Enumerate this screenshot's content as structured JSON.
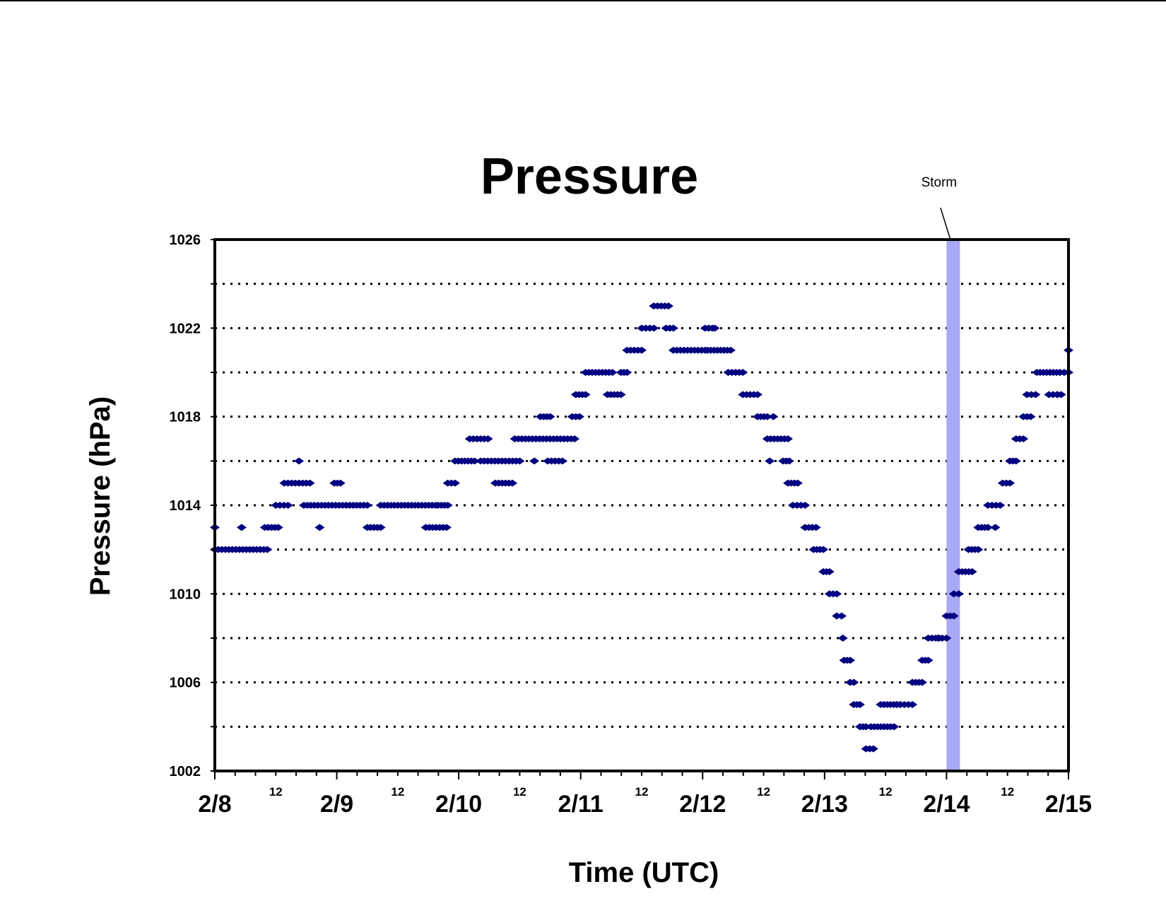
{
  "chart_data": {
    "type": "scatter",
    "title": "Pressure",
    "xlabel": "Time (UTC)",
    "ylabel": "Pressure (hPa)",
    "x_unit": "days",
    "xlim": [
      0,
      7
    ],
    "ylim": [
      1002,
      1026
    ],
    "y_ticks": [
      1002,
      1006,
      1010,
      1014,
      1018,
      1022,
      1026
    ],
    "y_gridlines": [
      1004,
      1006,
      1008,
      1010,
      1012,
      1014,
      1016,
      1018,
      1020,
      1022,
      1024
    ],
    "grid": "dotted horizontal",
    "day_tick_labels": [
      "2/8",
      "2/9",
      "2/10",
      "2/11",
      "2/12",
      "2/13",
      "2/14",
      "2/15"
    ],
    "noon_tick_label": "12",
    "marker_color": "#000080",
    "annotation": {
      "text": "Storm",
      "band_start": 6.0,
      "band_end": 6.11,
      "color": "#a9a9f5"
    },
    "series": [
      {
        "segments": [
          [
            0.0,
            0.43,
            1012
          ],
          [
            0.0,
            0.0,
            1013
          ],
          [
            0.22,
            0.22,
            1013
          ],
          [
            0.41,
            0.52,
            1013
          ],
          [
            0.5,
            0.6,
            1014
          ],
          [
            0.57,
            0.78,
            1015
          ],
          [
            0.69,
            0.69,
            1016
          ],
          [
            0.73,
            1.25,
            1014
          ],
          [
            0.86,
            0.86,
            1013
          ],
          [
            0.98,
            1.03,
            1015
          ],
          [
            1.25,
            1.36,
            1013
          ],
          [
            1.36,
            1.81,
            1014
          ],
          [
            1.73,
            1.9,
            1013
          ],
          [
            1.83,
            1.91,
            1014
          ],
          [
            1.91,
            1.97,
            1015
          ],
          [
            1.97,
            2.13,
            1016
          ],
          [
            2.09,
            2.24,
            1017
          ],
          [
            2.18,
            2.5,
            1016
          ],
          [
            2.3,
            2.44,
            1015
          ],
          [
            2.46,
            2.95,
            1017
          ],
          [
            2.62,
            2.62,
            1016
          ],
          [
            2.67,
            2.75,
            1018
          ],
          [
            2.73,
            2.85,
            1016
          ],
          [
            2.93,
            2.99,
            1018
          ],
          [
            2.96,
            3.04,
            1019
          ],
          [
            3.04,
            3.26,
            1020
          ],
          [
            3.22,
            3.33,
            1019
          ],
          [
            3.33,
            3.38,
            1020
          ],
          [
            3.38,
            3.5,
            1021
          ],
          [
            3.5,
            3.6,
            1022
          ],
          [
            3.6,
            3.72,
            1023
          ],
          [
            3.7,
            3.76,
            1022
          ],
          [
            3.76,
            4.02,
            1021
          ],
          [
            4.02,
            4.08,
            1022
          ],
          [
            4.1,
            4.1,
            1022
          ],
          [
            4.04,
            4.23,
            1021
          ],
          [
            4.21,
            4.33,
            1020
          ],
          [
            4.33,
            4.45,
            1019
          ],
          [
            4.45,
            4.53,
            1018
          ],
          [
            4.58,
            4.58,
            1018
          ],
          [
            4.53,
            4.7,
            1017
          ],
          [
            4.55,
            4.55,
            1016
          ],
          [
            4.66,
            4.71,
            1016
          ],
          [
            4.7,
            4.78,
            1015
          ],
          [
            4.74,
            4.84,
            1014
          ],
          [
            4.84,
            4.93,
            1013
          ],
          [
            4.91,
            4.99,
            1012
          ],
          [
            4.99,
            5.04,
            1011
          ],
          [
            5.04,
            5.1,
            1010
          ],
          [
            5.1,
            5.14,
            1009
          ],
          [
            5.15,
            5.15,
            1008
          ],
          [
            5.16,
            5.21,
            1007
          ],
          [
            5.21,
            5.24,
            1006
          ],
          [
            5.24,
            5.29,
            1005
          ],
          [
            5.29,
            5.34,
            1004
          ],
          [
            5.34,
            5.4,
            1003
          ],
          [
            5.38,
            5.57,
            1004
          ],
          [
            5.46,
            5.62,
            1005
          ],
          [
            5.59,
            5.72,
            1005
          ],
          [
            5.72,
            5.8,
            1006
          ],
          [
            5.8,
            5.85,
            1007
          ],
          [
            5.85,
            5.94,
            1008
          ],
          [
            5.93,
            6.0,
            1008
          ],
          [
            6.0,
            6.06,
            1009
          ],
          [
            6.06,
            6.1,
            1010
          ],
          [
            6.1,
            6.21,
            1011
          ],
          [
            6.18,
            6.26,
            1012
          ],
          [
            6.26,
            6.34,
            1013
          ],
          [
            6.34,
            6.44,
            1014
          ],
          [
            6.4,
            6.4,
            1013
          ],
          [
            6.46,
            6.52,
            1015
          ],
          [
            6.52,
            6.57,
            1016
          ],
          [
            6.57,
            6.63,
            1017
          ],
          [
            6.63,
            6.69,
            1018
          ],
          [
            6.66,
            6.73,
            1019
          ],
          [
            6.74,
            6.93,
            1020
          ],
          [
            6.93,
            7.0,
            1020
          ],
          [
            6.91,
            6.91,
            1019
          ],
          [
            6.84,
            6.94,
            1019
          ],
          [
            7.0,
            7.0,
            1021
          ]
        ]
      }
    ]
  }
}
